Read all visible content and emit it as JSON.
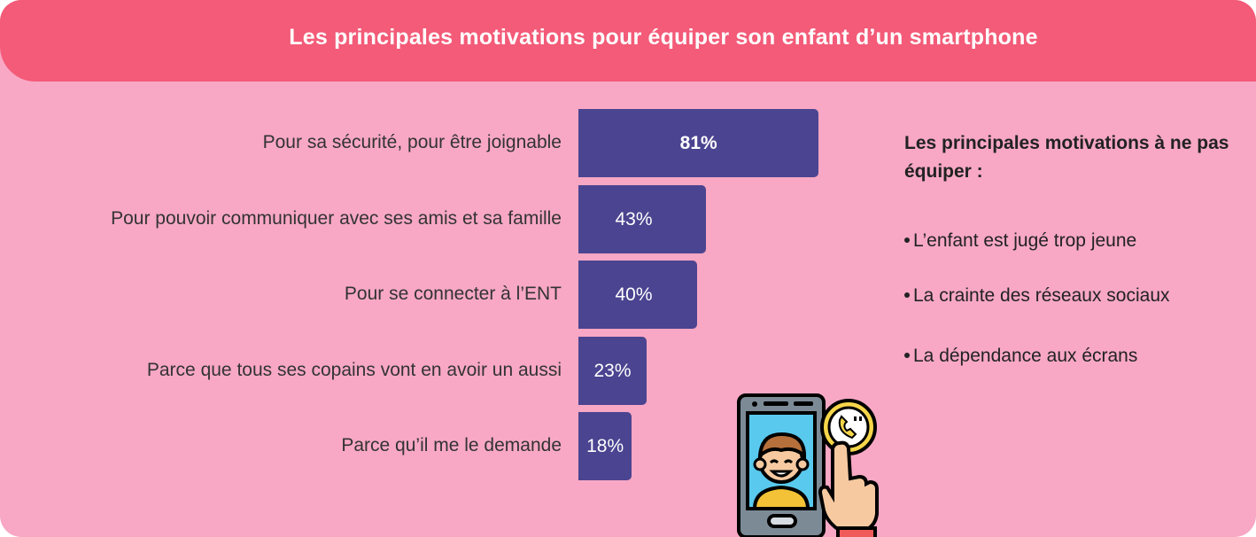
{
  "header": {
    "title": "Les principales motivations pour équiper son enfant d’un smartphone"
  },
  "chart_data": {
    "type": "bar",
    "orientation": "horizontal",
    "categories": [
      "Pour sa sécurité, pour être joignable",
      "Pour pouvoir communiquer avec ses amis et sa famille",
      "Pour se connecter à l’ENT",
      "Parce que tous ses copains vont en avoir un aussi",
      "Parce qu’il me le demande"
    ],
    "values": [
      81,
      43,
      40,
      23,
      18
    ],
    "value_labels": [
      "81%",
      "43%",
      "40%",
      "23%",
      "18%"
    ],
    "unit": "%",
    "xlim": [
      0,
      100
    ],
    "grid": false,
    "bar_color": "#4b4490"
  },
  "side_panel": {
    "title": "Les principales motivations à ne pas équiper :",
    "items": [
      "L’enfant est jugé trop jeune",
      "La crainte des réseaux sociaux",
      "La dépendance aux écrans"
    ]
  },
  "colors": {
    "background": "#f8a8c4",
    "header": "#f35b78",
    "bar": "#4b4490"
  },
  "icons": [
    "smartphone-video-call-icon"
  ]
}
